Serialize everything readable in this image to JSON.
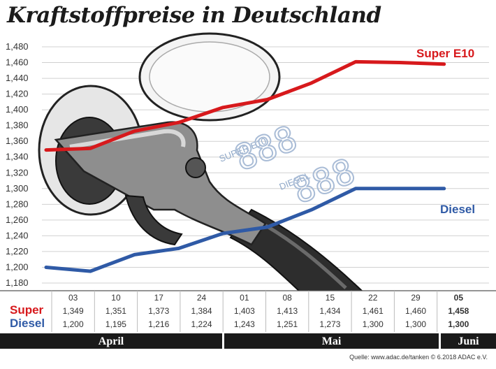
{
  "title": "Kraftstoffpreise in Deutschland",
  "source": "Quelle: www.adac.de/tanken  © 6.2018  ADAC e.V.",
  "colors": {
    "super": "#d7191c",
    "diesel": "#2f5aa6",
    "band": "#1a1a1a"
  },
  "chart_data": {
    "type": "line",
    "title": "Kraftstoffpreise in Deutschland",
    "xlabel": "",
    "ylabel": "",
    "ylim": [
      1.17,
      1.49
    ],
    "y_ticks": [
      "1,480",
      "1,460",
      "1,440",
      "1,420",
      "1,400",
      "1,380",
      "1,360",
      "1,340",
      "1,320",
      "1,300",
      "1,280",
      "1,260",
      "1,240",
      "1,220",
      "1,200",
      "1,180"
    ],
    "categories": [
      "03",
      "10",
      "17",
      "24",
      "01",
      "08",
      "15",
      "22",
      "29",
      "05"
    ],
    "months": [
      "April",
      "Mai",
      "Juni"
    ],
    "series": [
      {
        "name": "Super E10",
        "row_label": "Super",
        "color": "#d7191c",
        "values": [
          1.349,
          1.351,
          1.373,
          1.384,
          1.403,
          1.413,
          1.434,
          1.461,
          1.46,
          1.458
        ],
        "labels": [
          "1,349",
          "1,351",
          "1,373",
          "1,384",
          "1,403",
          "1,413",
          "1,434",
          "1,461",
          "1,460",
          "1,458"
        ]
      },
      {
        "name": "Diesel",
        "row_label": "Diesel",
        "color": "#2f5aa6",
        "values": [
          1.2,
          1.195,
          1.216,
          1.224,
          1.243,
          1.251,
          1.273,
          1.3,
          1.3,
          1.3
        ],
        "labels": [
          "1,200",
          "1,195",
          "1,216",
          "1,224",
          "1,243",
          "1,251",
          "1,273",
          "1,300",
          "1,300",
          "1,300"
        ]
      }
    ],
    "highlight_last": true,
    "grid": true
  },
  "illustration": {
    "type": "fuel-nozzle-in-tank-filler",
    "display_texts": [
      "SUPER E10",
      "DIESEL",
      "888",
      "888"
    ]
  }
}
